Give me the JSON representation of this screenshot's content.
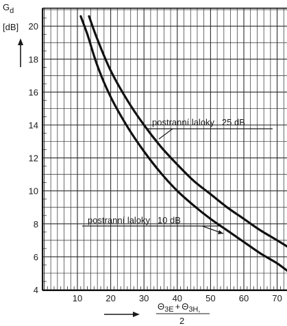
{
  "chart_data": {
    "type": "line",
    "ylabel": "G",
    "ylabel_sub": "d",
    "yunit": "[dB]",
    "xlabel": {
      "theta": "Θ",
      "sub_e": "3E",
      "plus": "+",
      "sub_h": "3H,",
      "denominator": "2"
    },
    "xlim": [
      0,
      76
    ],
    "ylim": [
      4,
      21
    ],
    "x_ticks": [
      10,
      20,
      30,
      40,
      50,
      60,
      70
    ],
    "y_ticks": [
      4,
      6,
      8,
      10,
      12,
      14,
      16,
      18,
      20
    ],
    "x_tick_labels": [
      "10",
      "20",
      "30",
      "40",
      "50",
      "60",
      "70"
    ],
    "y_tick_labels": [
      "4",
      "6",
      "8",
      "10",
      "12",
      "14",
      "16",
      "18",
      "20"
    ],
    "grid": true,
    "series": [
      {
        "name": "postranní laloky   25 dB",
        "x": [
          13.5,
          16,
          20,
          25,
          30,
          35,
          40,
          45,
          50,
          55,
          60,
          65,
          70,
          74
        ],
        "y": [
          20.6,
          19.2,
          17.3,
          15.5,
          14.0,
          12.7,
          11.6,
          10.6,
          9.8,
          9.0,
          8.3,
          7.6,
          7.0,
          6.5
        ]
      },
      {
        "name": "postranní laloky   10 dB",
        "x": [
          11,
          13,
          16,
          20,
          25,
          30,
          35,
          40,
          45,
          50,
          55,
          60,
          65,
          70,
          74
        ],
        "y": [
          20.6,
          19.5,
          17.6,
          15.7,
          13.9,
          12.4,
          11.1,
          10.0,
          9.1,
          8.3,
          7.6,
          6.9,
          6.2,
          5.6,
          5.0
        ]
      }
    ]
  }
}
